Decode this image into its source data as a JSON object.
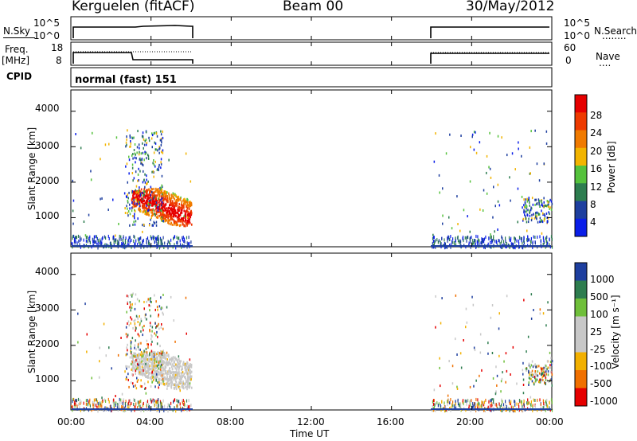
{
  "header": {
    "station": "Kerguelen (fitACF)",
    "beam": "Beam 00",
    "date": "30/May/2012"
  },
  "left_labels": {
    "nsky": "N.Sky",
    "freq": "Freq.",
    "freq_unit": "[MHz]",
    "cpid": "CPID"
  },
  "right_labels": {
    "nsearch": "N.Search",
    "nsearch_dots": "........",
    "nave": "Nave",
    "nave_dots": "...."
  },
  "cpid_text": "normal (fast) 151",
  "colors": {
    "power": [
      "#0a1ee8",
      "#1e3f9f",
      "#2d7d4f",
      "#55c23c",
      "#f2b400",
      "#f07a00",
      "#ee3a00",
      "#e60000"
    ],
    "velocity": [
      "#e60000",
      "#f07000",
      "#f2b000",
      "#c8c8c8",
      "#c8c8c8",
      "#6fbf3a",
      "#2e7d4f",
      "#1e3f9f"
    ]
  },
  "chart_data": [
    {
      "type": "line",
      "name": "nsky-nsearch",
      "ylabel_left": "N.Sky",
      "ylabel_right": "N.Search",
      "yticks_left": [
        "10^5",
        "10^0"
      ],
      "yticks_right": [
        "10^5",
        "10^0"
      ],
      "segments": [
        [
          0.0,
          6.0
        ],
        [
          18.0,
          24.0
        ]
      ]
    },
    {
      "type": "line",
      "name": "freq-nave",
      "yticks_left": [
        "18",
        "8"
      ],
      "yticks_right": [
        "60",
        "0"
      ],
      "segments": [
        [
          0.0,
          6.0
        ],
        [
          18.0,
          24.0
        ]
      ]
    },
    {
      "type": "heatmap",
      "name": "power",
      "ylabel": "Slant Range [km]",
      "yticks": [
        "4000",
        "3000",
        "2000",
        "1000"
      ],
      "ylim": [
        180,
        4600
      ],
      "xlim": [
        0,
        24
      ],
      "colorbar_label": "Power [dB]",
      "colorbar_ticks": [
        "28",
        "24",
        "20",
        "16",
        "12",
        "8",
        "4"
      ],
      "scatter_regions": [
        {
          "x": [
            2.8,
            4.5
          ],
          "y": [
            700,
            3500
          ]
        },
        {
          "x": [
            18.0,
            24.0
          ],
          "y": [
            200,
            3500
          ]
        },
        {
          "x": [
            0.0,
            6.0
          ],
          "y": [
            200,
            500
          ]
        }
      ],
      "strong_echo": {
        "x": [
          2.9,
          6.0
        ],
        "y": [
          800,
          1800
        ],
        "note": "10-28 dB"
      }
    },
    {
      "type": "heatmap",
      "name": "velocity",
      "ylabel": "Slant Range [km]",
      "yticks": [
        "4000",
        "3000",
        "2000",
        "1000"
      ],
      "ylim": [
        180,
        4600
      ],
      "xlim": [
        0,
        24
      ],
      "colorbar_label": "Velocity [m s⁻¹]",
      "colorbar_ticks": [
        "1000",
        "500",
        "100",
        "25",
        "-25",
        "-100",
        "-500",
        "-1000"
      ],
      "dominant_range": {
        "x": [
          2.9,
          6.0
        ],
        "y": [
          800,
          1800
        ],
        "note": "-25 to 25"
      }
    }
  ],
  "xaxis": {
    "ticks": [
      "00:00",
      "04:00",
      "08:00",
      "12:00",
      "16:00",
      "20:00",
      "00:00"
    ],
    "label": "Time UT"
  }
}
